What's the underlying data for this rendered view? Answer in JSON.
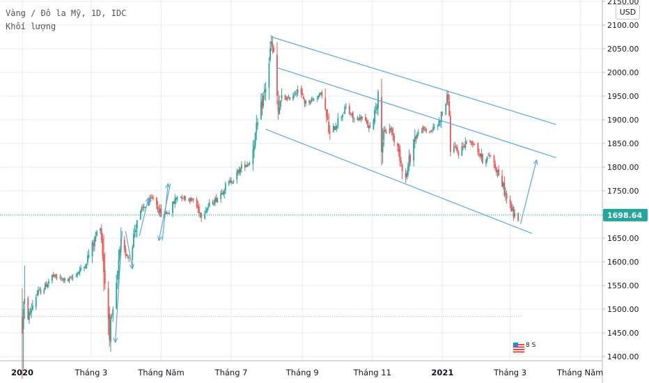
{
  "legend": {
    "line1": "Vàng / Đô la Mỹ, 1D, IDC",
    "line2": "Khối lượng"
  },
  "unit": "USD",
  "colors": {
    "up": "#26a69a",
    "down": "#ef5350",
    "channel": "#5aa7e0",
    "grid": "#e6ecf5",
    "axis_text": "#131722",
    "price_label_bg": "#26a69a",
    "price_line": "#26a69a"
  },
  "chart_data": {
    "type": "candlestick",
    "price_axis": {
      "ticks": [
        1400,
        1450,
        1500,
        1550,
        1600,
        1650,
        1700,
        1750,
        1800,
        1850,
        1900,
        1950,
        2000,
        2050,
        2100,
        2150
      ],
      "range": [
        1395,
        2160
      ],
      "labels": [
        "1400.00",
        "1450.00",
        "1500.00",
        "1550.00",
        "1600.00",
        "1650.00",
        "1700.00",
        "1750.00",
        "1800.00",
        "1850.00",
        "1900.00",
        "1950.00",
        "2000.00",
        "2050.00",
        "2100.00",
        "2150.00"
      ]
    },
    "time_axis": {
      "range": [
        "2020-01-01",
        "2021-05-10"
      ],
      "ticks": [
        {
          "date": "2020-01-01",
          "label": "2020"
        },
        {
          "date": "2020-03-01",
          "label": "Tháng 3"
        },
        {
          "date": "2020-05-01",
          "label": "Tháng Năm"
        },
        {
          "date": "2020-07-01",
          "label": "Tháng 7"
        },
        {
          "date": "2020-09-01",
          "label": "Tháng 9"
        },
        {
          "date": "2020-11-01",
          "label": "Tháng 11"
        },
        {
          "date": "2021-01-01",
          "label": "2021"
        },
        {
          "date": "2021-03-01",
          "label": "Tháng 3"
        },
        {
          "date": "2021-05-01",
          "label": "Tháng Năm"
        }
      ]
    },
    "last_price": 1698.64,
    "last_price_label": "1698.64",
    "reference_level": 1485,
    "path": [
      [
        "2020-01-01",
        1475
      ],
      [
        "2020-01-06",
        1482
      ],
      [
        "2020-01-13",
        1530
      ],
      [
        "2020-01-20",
        1545
      ],
      [
        "2020-01-27",
        1570
      ],
      [
        "2020-02-03",
        1565
      ],
      [
        "2020-02-10",
        1560
      ],
      [
        "2020-02-17",
        1575
      ],
      [
        "2020-02-24",
        1590
      ],
      [
        "2020-03-03",
        1640
      ],
      [
        "2020-03-09",
        1680
      ],
      [
        "2020-03-13",
        1560
      ],
      [
        "2020-03-17",
        1460
      ],
      [
        "2020-03-20",
        1490
      ],
      [
        "2020-03-27",
        1630
      ],
      [
        "2020-04-03",
        1610
      ],
      [
        "2020-04-10",
        1690
      ],
      [
        "2020-04-17",
        1720
      ],
      [
        "2020-04-24",
        1735
      ],
      [
        "2020-05-01",
        1700
      ],
      [
        "2020-05-08",
        1705
      ],
      [
        "2020-05-15",
        1740
      ],
      [
        "2020-05-22",
        1735
      ],
      [
        "2020-05-29",
        1730
      ],
      [
        "2020-06-05",
        1700
      ],
      [
        "2020-06-12",
        1720
      ],
      [
        "2020-06-19",
        1735
      ],
      [
        "2020-06-26",
        1760
      ],
      [
        "2020-07-03",
        1775
      ],
      [
        "2020-07-10",
        1800
      ],
      [
        "2020-07-17",
        1810
      ],
      [
        "2020-07-24",
        1890
      ],
      [
        "2020-07-31",
        1970
      ],
      [
        "2020-08-05",
        2060
      ],
      [
        "2020-08-07",
        2040
      ],
      [
        "2020-08-11",
        1915
      ],
      [
        "2020-08-14",
        1945
      ],
      [
        "2020-08-21",
        1945
      ],
      [
        "2020-08-28",
        1965
      ],
      [
        "2020-09-04",
        1935
      ],
      [
        "2020-09-11",
        1945
      ],
      [
        "2020-09-18",
        1955
      ],
      [
        "2020-09-25",
        1865
      ],
      [
        "2020-10-02",
        1900
      ],
      [
        "2020-10-09",
        1925
      ],
      [
        "2020-10-16",
        1900
      ],
      [
        "2020-10-23",
        1905
      ],
      [
        "2020-10-30",
        1880
      ],
      [
        "2020-11-06",
        1950
      ],
      [
        "2020-11-09",
        1860
      ],
      [
        "2020-11-16",
        1885
      ],
      [
        "2020-11-23",
        1840
      ],
      [
        "2020-11-30",
        1775
      ],
      [
        "2020-12-07",
        1860
      ],
      [
        "2020-12-14",
        1880
      ],
      [
        "2020-12-21",
        1875
      ],
      [
        "2020-12-28",
        1890
      ],
      [
        "2021-01-06",
        1950
      ],
      [
        "2021-01-08",
        1850
      ],
      [
        "2021-01-15",
        1830
      ],
      [
        "2021-01-22",
        1855
      ],
      [
        "2021-01-29",
        1850
      ],
      [
        "2021-02-05",
        1815
      ],
      [
        "2021-02-12",
        1825
      ],
      [
        "2021-02-19",
        1785
      ],
      [
        "2021-02-26",
        1735
      ],
      [
        "2021-03-04",
        1700
      ],
      [
        "2021-03-08",
        1690
      ]
    ],
    "channel_lines": [
      {
        "from": [
          "2020-08-05",
          2075
        ],
        "to": [
          "2021-04-10",
          1890
        ]
      },
      {
        "from": [
          "2020-08-10",
          2010
        ],
        "to": [
          "2021-04-10",
          1820
        ]
      },
      {
        "from": [
          "2020-07-31",
          1880
        ],
        "to": [
          "2021-03-20",
          1660
        ]
      }
    ],
    "arrows": [
      {
        "from": [
          "2021-03-10",
          1680
        ],
        "to": [
          "2021-03-24",
          1815
        ]
      },
      {
        "from": [
          "2020-05-02",
          1645
        ],
        "to": [
          "2020-05-07",
          1765
        ]
      },
      {
        "from": [
          "2020-05-09",
          1765
        ],
        "to": [
          "2020-04-29",
          1645
        ]
      },
      {
        "from": [
          "2020-04-12",
          1655
        ],
        "to": [
          "2020-04-20",
          1735
        ]
      },
      {
        "from": [
          "2020-03-31",
          1665
        ],
        "to": [
          "2020-04-06",
          1585
        ]
      },
      {
        "from": [
          "2020-03-28",
          1665
        ],
        "to": [
          "2020-03-22",
          1430
        ]
      }
    ]
  },
  "badge": {
    "text": "8 S",
    "colors": [
      "#e53935",
      "#1e88e5"
    ]
  }
}
